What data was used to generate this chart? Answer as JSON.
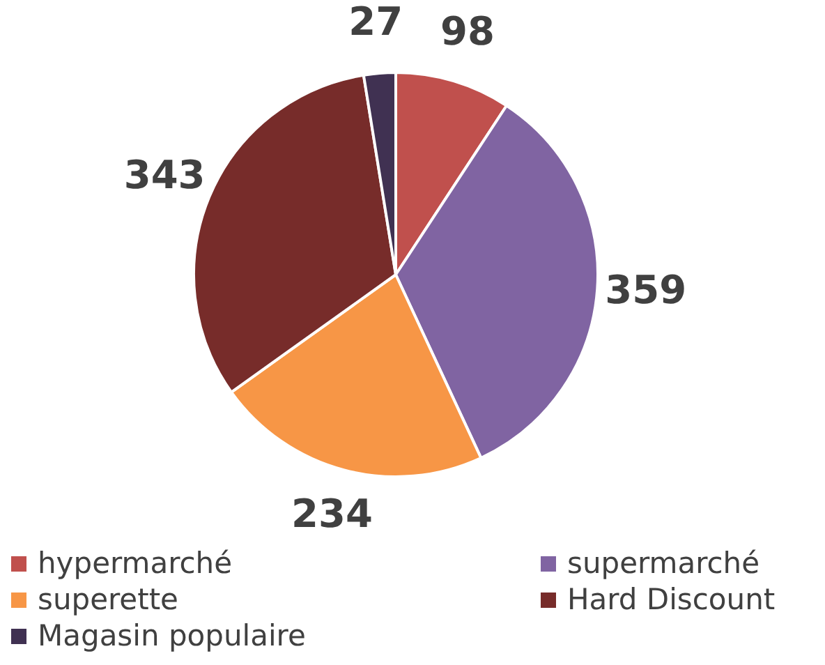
{
  "chart_data": {
    "type": "pie",
    "categories": [
      "hypermarché",
      "supermarché",
      "superette",
      "Hard Discount",
      "Magasin populaire"
    ],
    "values": [
      98,
      359,
      234,
      343,
      27
    ],
    "colors": [
      "#c0504d",
      "#8064a2",
      "#f79646",
      "#772c2a",
      "#403152"
    ],
    "data_labels": true,
    "legend": "bottom"
  }
}
